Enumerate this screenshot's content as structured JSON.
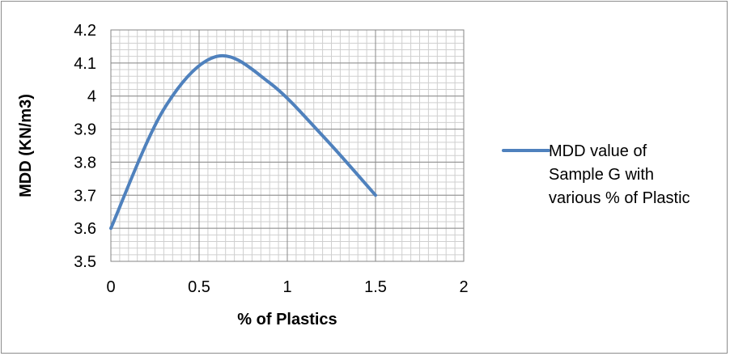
{
  "chart_data": {
    "type": "line",
    "title": "",
    "xlabel": "% of Plastics",
    "ylabel": "MDD (KN/m3)",
    "xlim": [
      0,
      2
    ],
    "ylim": [
      3.5,
      4.2
    ],
    "x_ticks": [
      "0",
      "0.5",
      "1",
      "1.5",
      "2"
    ],
    "y_ticks": [
      "3.5",
      "3.6",
      "3.7",
      "3.8",
      "3.9",
      "4",
      "4.1",
      "4.2"
    ],
    "grid": true,
    "legend_position": "right",
    "series": [
      {
        "name": "MDD value of Sample G with various % of Plastic",
        "color": "#4f81bd",
        "x": [
          0,
          0.3,
          0.6,
          0.9,
          1.2,
          1.5
        ],
        "y": [
          3.6,
          3.96,
          4.12,
          4.04,
          3.88,
          3.7
        ]
      }
    ],
    "legend_lines": [
      "MDD value of",
      "Sample G with",
      "various % of Plastic"
    ]
  }
}
